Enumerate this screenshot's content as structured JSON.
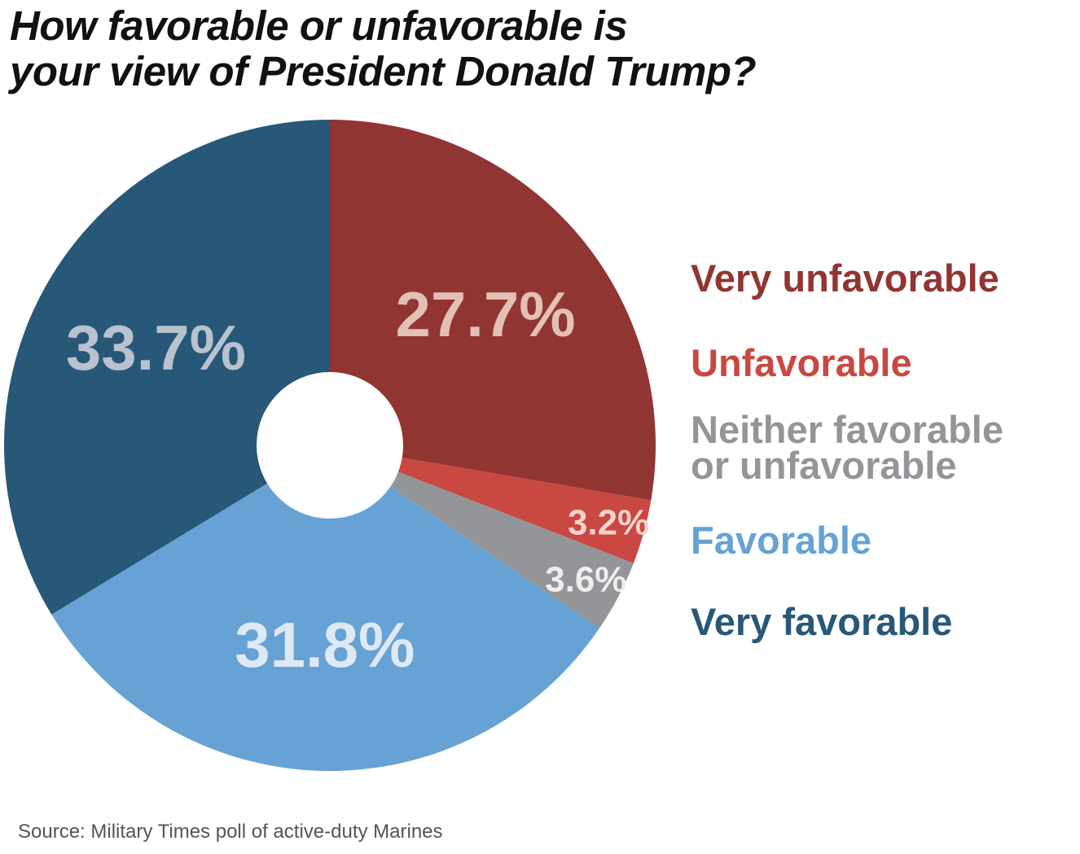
{
  "title": {
    "line1": "How favorable or unfavorable is",
    "line2": "your view of President Donald Trump?"
  },
  "chart_data": {
    "type": "pie",
    "donut": true,
    "categories": [
      "Very unfavorable",
      "Unfavorable",
      "Neither favorable or unfavorable",
      "Favorable",
      "Very favorable"
    ],
    "values": [
      27.7,
      3.2,
      3.6,
      31.8,
      33.7
    ],
    "labels": [
      "27.7%",
      "3.2%",
      "3.6%",
      "31.8%",
      "33.7%"
    ],
    "colors": [
      "#913533",
      "#c94841",
      "#939598",
      "#66a3d4",
      "#285878"
    ],
    "label_colors": [
      "#e3c0b5",
      "#f2d3cd",
      "#eeeeef",
      "#dfe9f4",
      "#b9c2ce"
    ],
    "legend_position": "right"
  },
  "legend": {
    "very_unfavorable": "Very unfavorable",
    "unfavorable": "Unfavorable",
    "neither_line1": "Neither favorable",
    "neither_line2": "or unfavorable",
    "favorable": "Favorable",
    "very_favorable": "Very favorable"
  },
  "source": "Source: Military Times poll of active-duty Marines"
}
